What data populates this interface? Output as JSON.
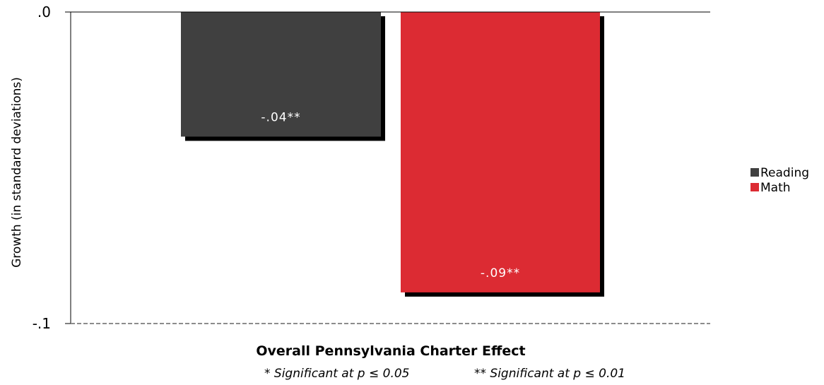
{
  "chart_data": {
    "type": "bar",
    "categories": [
      ""
    ],
    "series": [
      {
        "name": "Reading",
        "values": [
          -0.04
        ],
        "label": "-.04**",
        "color": "#404040"
      },
      {
        "name": "Math",
        "values": [
          -0.09
        ],
        "label": "-.09**",
        "color": "#dc2b33"
      }
    ],
    "title": "",
    "xlabel": "Overall Pennsylvania Charter Effect",
    "ylabel": "Growth (in standard deviations)",
    "ylim": [
      -0.1,
      0.0
    ],
    "yticks": [
      0.0,
      -0.1
    ],
    "ytick_labels": [
      ".0",
      "-.1"
    ],
    "legend_position": "right",
    "grid": false,
    "footnote": {
      "sig_05": "* Significant at p ≤ 0.05",
      "sig_01": "** Significant at p ≤ 0.01"
    }
  }
}
